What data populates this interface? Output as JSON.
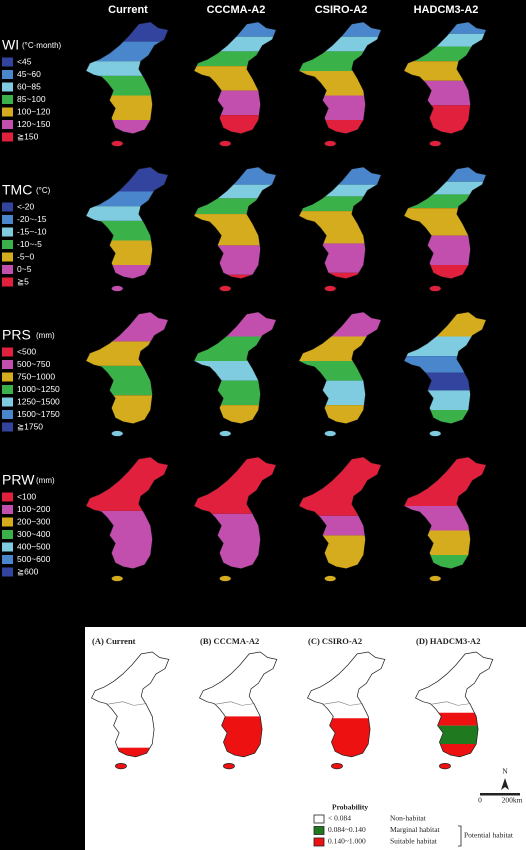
{
  "column_headers": [
    "Current",
    "CCCMA-A2",
    "CSIRO-A2",
    "HADCM3-A2"
  ],
  "variables": [
    {
      "name": "WI",
      "unit": "(°C·month)",
      "legend": [
        {
          "label": "<45",
          "color": "#33449e"
        },
        {
          "label": "45~60",
          "color": "#4a86cc"
        },
        {
          "label": "60~85",
          "color": "#7fcbe0"
        },
        {
          "label": "85~100",
          "color": "#3bb14a"
        },
        {
          "label": "100~120",
          "color": "#d5ac1e"
        },
        {
          "label": "120~150",
          "color": "#c24fae"
        },
        {
          "label": "≧150",
          "color": "#e0203c"
        }
      ]
    },
    {
      "name": "TMC",
      "unit": "(°C)",
      "legend": [
        {
          "label": "<-20",
          "color": "#33449e"
        },
        {
          "label": "-20~-15",
          "color": "#4a86cc"
        },
        {
          "label": "-15~-10",
          "color": "#7fcbe0"
        },
        {
          "label": "-10~-5",
          "color": "#3bb14a"
        },
        {
          "label": "-5~0",
          "color": "#d5ac1e"
        },
        {
          "label": "0~5",
          "color": "#c24fae"
        },
        {
          "label": "≧5",
          "color": "#e0203c"
        }
      ]
    },
    {
      "name": "PRS",
      "unit": "(mm)",
      "legend": [
        {
          "label": "<500",
          "color": "#e0203c"
        },
        {
          "label": "500~750",
          "color": "#c24fae"
        },
        {
          "label": "750~1000",
          "color": "#d5ac1e"
        },
        {
          "label": "1000~1250",
          "color": "#3bb14a"
        },
        {
          "label": "1250~1500",
          "color": "#7fcbe0"
        },
        {
          "label": "1500~1750",
          "color": "#4a86cc"
        },
        {
          "label": "≧1750",
          "color": "#33449e"
        }
      ]
    },
    {
      "name": "PRW",
      "unit": "(mm)",
      "legend": [
        {
          "label": "<100",
          "color": "#e0203c"
        },
        {
          "label": "100~200",
          "color": "#c24fae"
        },
        {
          "label": "200~300",
          "color": "#d5ac1e"
        },
        {
          "label": "300~400",
          "color": "#3bb14a"
        },
        {
          "label": "400~500",
          "color": "#7fcbe0"
        },
        {
          "label": "500~600",
          "color": "#4a86cc"
        },
        {
          "label": "≧600",
          "color": "#33449e"
        }
      ]
    }
  ],
  "habitat_panel": {
    "titles": [
      "(A) Current",
      "(B) CCCMA-A2",
      "(C) CSIRO-A2",
      "(D) HADCM3-A2"
    ],
    "legend_title": "Probability",
    "classes": [
      {
        "range": "< 0.084",
        "label": "Non-habitat",
        "color": "#ffffff"
      },
      {
        "range": "0.084~0.140",
        "label": "Marginal habitat",
        "color": "#1f7a1f"
      },
      {
        "range": "0.140~1.000",
        "label": "Suitable habitat",
        "color": "#ee1111"
      }
    ],
    "group_label": "Potential habitat",
    "north": "N",
    "scale_labels": [
      "0",
      "200km"
    ]
  }
}
